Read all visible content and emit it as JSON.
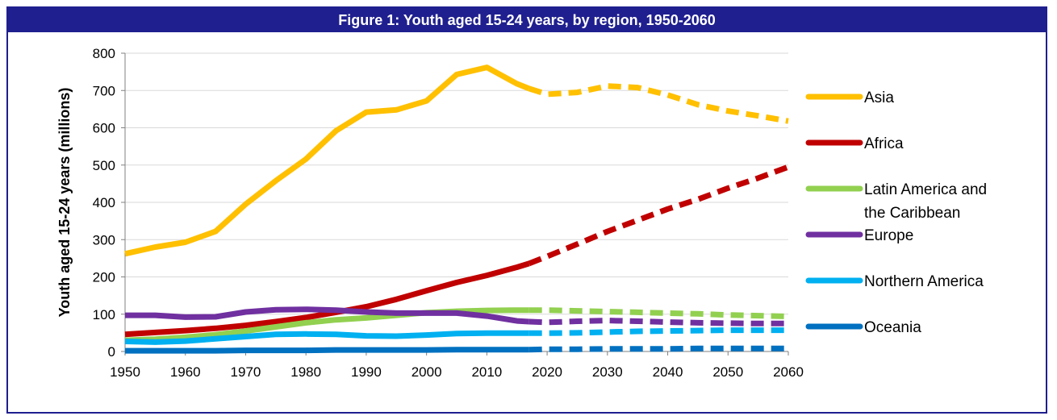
{
  "chart_data": {
    "type": "line",
    "title": "Figure 1: Youth aged 15-24 years, by region, 1950-2060",
    "xlabel": "",
    "ylabel": "Youth aged 15-24 years (millions)",
    "xlim": [
      1950,
      2060
    ],
    "ylim": [
      0,
      800
    ],
    "x_ticks": [
      "1950",
      "1960",
      "1970",
      "1980",
      "1990",
      "2000",
      "2010",
      "2020",
      "2030",
      "2040",
      "2050",
      "2060"
    ],
    "y_ticks": [
      "0",
      "100",
      "200",
      "300",
      "400",
      "500",
      "600",
      "700",
      "800"
    ],
    "grid": true,
    "legend_placement": "right",
    "projection_start": 2017,
    "projection_style": "dashed",
    "series": [
      {
        "name": "Asia",
        "color": "#ffc000",
        "x": [
          1950,
          1955,
          1960,
          1965,
          1970,
          1975,
          1980,
          1985,
          1990,
          1995,
          2000,
          2005,
          2010,
          2015,
          2017,
          2020,
          2025,
          2030,
          2035,
          2040,
          2045,
          2050,
          2055,
          2060
        ],
        "y": [
          262,
          280,
          293,
          322,
          395,
          458,
          516,
          592,
          642,
          648,
          672,
          743,
          762,
          718,
          705,
          690,
          695,
          712,
          708,
          688,
          662,
          645,
          632,
          618
        ]
      },
      {
        "name": "Africa",
        "color": "#c00000",
        "x": [
          1950,
          1955,
          1960,
          1965,
          1970,
          1975,
          1980,
          1985,
          1990,
          1995,
          2000,
          2005,
          2010,
          2015,
          2017,
          2020,
          2025,
          2030,
          2035,
          2040,
          2045,
          2050,
          2055,
          2060
        ],
        "y": [
          46,
          51,
          56,
          62,
          70,
          80,
          91,
          105,
          120,
          140,
          163,
          185,
          204,
          226,
          236,
          255,
          288,
          322,
          352,
          382,
          408,
          438,
          465,
          495
        ]
      },
      {
        "name": "Latin America and the Caribbean",
        "color": "#92d050",
        "x": [
          1950,
          1955,
          1960,
          1965,
          1970,
          1975,
          1980,
          1985,
          1990,
          1995,
          2000,
          2005,
          2010,
          2015,
          2017,
          2020,
          2025,
          2030,
          2035,
          2040,
          2045,
          2050,
          2055,
          2060
        ],
        "y": [
          30,
          33,
          38,
          45,
          55,
          66,
          77,
          85,
          90,
          97,
          104,
          108,
          110,
          111,
          111,
          111,
          109,
          107,
          105,
          103,
          101,
          98,
          96,
          94
        ]
      },
      {
        "name": "Europe",
        "color": "#7030a0",
        "x": [
          1950,
          1955,
          1960,
          1965,
          1970,
          1975,
          1980,
          1985,
          1990,
          1995,
          2000,
          2005,
          2010,
          2015,
          2017,
          2020,
          2025,
          2030,
          2035,
          2040,
          2045,
          2050,
          2055,
          2060
        ],
        "y": [
          97,
          97,
          92,
          93,
          106,
          112,
          113,
          111,
          106,
          103,
          103,
          103,
          95,
          82,
          80,
          78,
          81,
          83,
          81,
          79,
          77,
          76,
          75,
          75
        ]
      },
      {
        "name": "Northern America",
        "color": "#00b0f0",
        "x": [
          1950,
          1955,
          1960,
          1965,
          1970,
          1975,
          1980,
          1985,
          1990,
          1995,
          2000,
          2005,
          2010,
          2015,
          2017,
          2020,
          2025,
          2030,
          2035,
          2040,
          2045,
          2050,
          2055,
          2060
        ],
        "y": [
          27,
          25,
          28,
          34,
          40,
          46,
          47,
          46,
          42,
          41,
          44,
          48,
          49,
          49,
          49,
          49,
          50,
          52,
          54,
          55,
          56,
          57,
          57,
          57
        ]
      },
      {
        "name": "Oceania",
        "color": "#0070c0",
        "x": [
          1950,
          1955,
          1960,
          1965,
          1970,
          1975,
          1980,
          1985,
          1990,
          1995,
          2000,
          2005,
          2010,
          2015,
          2017,
          2020,
          2025,
          2030,
          2035,
          2040,
          2045,
          2050,
          2055,
          2060
        ],
        "y": [
          2,
          2,
          2,
          2,
          3,
          3,
          3,
          4,
          4,
          4,
          4,
          5,
          5,
          5,
          5,
          6,
          6,
          7,
          7,
          7,
          8,
          8,
          8,
          8
        ]
      }
    ]
  }
}
